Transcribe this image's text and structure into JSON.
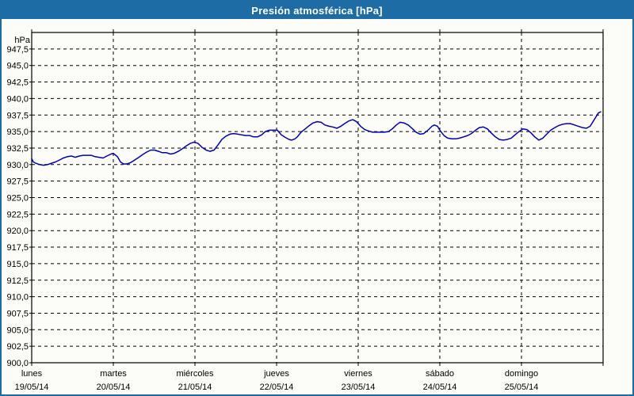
{
  "window": {
    "title": "Presión atmosférica [hPa]"
  },
  "colors": {
    "titlebar_bg": "#1d6ca5",
    "frame": "#1d6ca5",
    "background": "#fcfdf8",
    "grid": "#000000",
    "axis": "#000000",
    "text": "#000000",
    "title_text": "#ffffff",
    "line": "#0000b4"
  },
  "chart_data": {
    "type": "line",
    "title": "Presión atmosférica [hPa]",
    "legend_position": "none",
    "grid": {
      "horizontal": "dashed",
      "vertical": "dashed"
    },
    "y_axis": {
      "unit": "hPa",
      "min": 900,
      "max": 950,
      "tick_step": 2.5,
      "decimal_separator": ",",
      "ticks": [
        947.5,
        945.0,
        942.5,
        940.0,
        937.5,
        935.0,
        932.5,
        930.0,
        927.5,
        925.0,
        922.5,
        920.0,
        917.5,
        915.0,
        912.5,
        910.0,
        907.5,
        905.0,
        902.5,
        900.0
      ]
    },
    "x_axis": {
      "total_hours": 168,
      "hours_per_day": 24,
      "days": [
        {
          "name": "lunes",
          "date": "19/05/14"
        },
        {
          "name": "martes",
          "date": "20/05/14"
        },
        {
          "name": "miércoles",
          "date": "21/05/14"
        },
        {
          "name": "jueves",
          "date": "22/05/14"
        },
        {
          "name": "viernes",
          "date": "23/05/14"
        },
        {
          "name": "sábado",
          "date": "24/05/14"
        },
        {
          "name": "domingo",
          "date": "25/05/14"
        }
      ]
    },
    "series": [
      {
        "name": "Presión atmosférica",
        "color": "#0000b4",
        "points": [
          [
            0,
            930.9
          ],
          [
            0.5,
            930.4
          ],
          [
            1.2,
            930.2
          ],
          [
            2.3,
            930.0
          ],
          [
            3.5,
            929.9
          ],
          [
            4.7,
            930.0
          ],
          [
            5.8,
            930.2
          ],
          [
            7,
            930.4
          ],
          [
            8.2,
            930.7
          ],
          [
            9.3,
            931.0
          ],
          [
            10.5,
            931.2
          ],
          [
            11.7,
            931.3
          ],
          [
            12.8,
            931.1
          ],
          [
            14,
            931.3
          ],
          [
            15.1,
            931.4
          ],
          [
            16.3,
            931.4
          ],
          [
            17.5,
            931.4
          ],
          [
            18.6,
            931.2
          ],
          [
            19.8,
            931.1
          ],
          [
            21,
            931.0
          ],
          [
            22.1,
            931.3
          ],
          [
            23.3,
            931.6
          ],
          [
            24,
            931.7
          ],
          [
            25.2,
            931.2
          ],
          [
            26.1,
            930.4
          ],
          [
            27,
            930.1
          ],
          [
            28,
            930.1
          ],
          [
            29.1,
            930.3
          ],
          [
            30.3,
            930.7
          ],
          [
            31.5,
            931.1
          ],
          [
            32.6,
            931.5
          ],
          [
            33.8,
            931.9
          ],
          [
            35,
            932.2
          ],
          [
            36.1,
            932.2
          ],
          [
            37.3,
            932.0
          ],
          [
            38.4,
            931.8
          ],
          [
            39.6,
            931.8
          ],
          [
            40.8,
            931.6
          ],
          [
            41.9,
            931.7
          ],
          [
            43.1,
            932.0
          ],
          [
            44.3,
            932.4
          ],
          [
            45.4,
            932.8
          ],
          [
            46.6,
            933.2
          ],
          [
            47.8,
            933.4
          ],
          [
            48.9,
            933.2
          ],
          [
            50.1,
            932.6
          ],
          [
            51.3,
            932.2
          ],
          [
            52.4,
            932.0
          ],
          [
            53.6,
            932.2
          ],
          [
            54.8,
            933.0
          ],
          [
            55.9,
            933.8
          ],
          [
            57.1,
            934.3
          ],
          [
            58.3,
            934.6
          ],
          [
            59.4,
            934.7
          ],
          [
            60.6,
            934.6
          ],
          [
            61.7,
            934.5
          ],
          [
            62.9,
            934.4
          ],
          [
            64.1,
            934.4
          ],
          [
            65.2,
            934.2
          ],
          [
            66.4,
            934.2
          ],
          [
            67.6,
            934.5
          ],
          [
            68.7,
            935.0
          ],
          [
            69.9,
            935.2
          ],
          [
            71.1,
            935.2
          ],
          [
            72.2,
            935.2
          ],
          [
            73.4,
            934.5
          ],
          [
            74.6,
            934.1
          ],
          [
            75.7,
            933.8
          ],
          [
            76.4,
            933.7
          ],
          [
            77.4,
            933.9
          ],
          [
            78.1,
            934.2
          ],
          [
            79.2,
            934.9
          ],
          [
            80.4,
            935.4
          ],
          [
            81.6,
            935.9
          ],
          [
            82.7,
            936.3
          ],
          [
            83.9,
            936.5
          ],
          [
            85.1,
            936.4
          ],
          [
            86.2,
            936.0
          ],
          [
            87.4,
            935.8
          ],
          [
            88.5,
            935.7
          ],
          [
            89.7,
            935.5
          ],
          [
            90.9,
            935.8
          ],
          [
            92,
            936.2
          ],
          [
            93.2,
            936.6
          ],
          [
            94.4,
            936.8
          ],
          [
            95.5,
            936.5
          ],
          [
            96.7,
            935.8
          ],
          [
            97.9,
            935.3
          ],
          [
            99,
            935.1
          ],
          [
            100.2,
            934.9
          ],
          [
            101.4,
            934.9
          ],
          [
            102.5,
            934.9
          ],
          [
            103.7,
            934.9
          ],
          [
            104.9,
            935.0
          ],
          [
            106,
            935.4
          ],
          [
            107.2,
            936.0
          ],
          [
            108.3,
            936.4
          ],
          [
            109.5,
            936.3
          ],
          [
            110.7,
            936.0
          ],
          [
            111.8,
            935.5
          ],
          [
            113,
            934.9
          ],
          [
            114.2,
            934.6
          ],
          [
            115.3,
            934.7
          ],
          [
            116.5,
            935.2
          ],
          [
            117.7,
            935.8
          ],
          [
            118.4,
            936.0
          ],
          [
            119.3,
            935.8
          ],
          [
            120,
            935.2
          ],
          [
            121.2,
            934.4
          ],
          [
            122.3,
            934.0
          ],
          [
            123.5,
            933.9
          ],
          [
            124.7,
            933.9
          ],
          [
            125.8,
            934.0
          ],
          [
            127,
            934.2
          ],
          [
            128.2,
            934.4
          ],
          [
            129.3,
            934.7
          ],
          [
            130.5,
            935.2
          ],
          [
            131.6,
            935.6
          ],
          [
            132.8,
            935.7
          ],
          [
            134,
            935.4
          ],
          [
            135.1,
            934.8
          ],
          [
            136.3,
            934.2
          ],
          [
            137.5,
            933.8
          ],
          [
            138.6,
            933.7
          ],
          [
            139.8,
            933.8
          ],
          [
            141,
            934.0
          ],
          [
            142.1,
            934.5
          ],
          [
            143.3,
            935.0
          ],
          [
            144.4,
            935.4
          ],
          [
            145.6,
            935.3
          ],
          [
            146.8,
            934.8
          ],
          [
            147.9,
            934.2
          ],
          [
            149.1,
            933.7
          ],
          [
            150.3,
            934.0
          ],
          [
            151.4,
            934.6
          ],
          [
            152.6,
            935.2
          ],
          [
            153.8,
            935.6
          ],
          [
            154.9,
            935.9
          ],
          [
            156.1,
            936.1
          ],
          [
            157.2,
            936.2
          ],
          [
            158.4,
            936.2
          ],
          [
            159.6,
            936.0
          ],
          [
            160.7,
            935.8
          ],
          [
            161.9,
            935.6
          ],
          [
            163.1,
            935.5
          ],
          [
            164.2,
            935.8
          ],
          [
            165.4,
            936.8
          ],
          [
            166.6,
            937.8
          ],
          [
            167.3,
            938.0
          ]
        ]
      }
    ]
  }
}
